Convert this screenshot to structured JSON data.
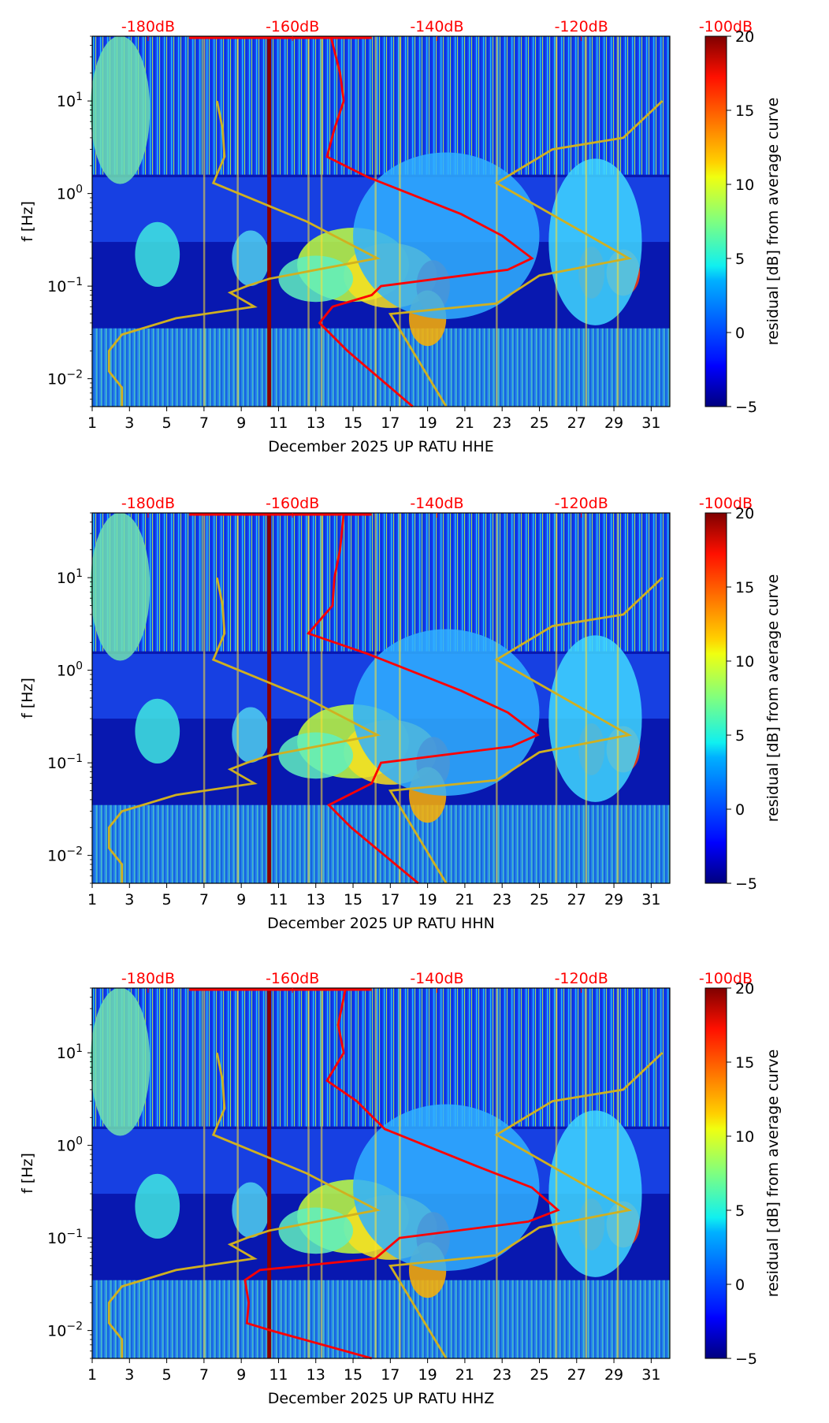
{
  "figure": {
    "xlabel_month": "December 2025 UP RATU",
    "ylabel": "f [Hz]",
    "colorbar_label": "residual [dB] from average curve",
    "ref_color": "#ff0000",
    "nlnm_color": "#d0b020"
  },
  "chart_data": [
    {
      "type": "heatmap",
      "channel": "HHE",
      "xlabel": "December 2025 UP RATU  HHE",
      "ylabel": "f [Hz]",
      "xlim": [
        1,
        32
      ],
      "ylim": [
        0.005,
        50
      ],
      "yscale": "log",
      "xticks": [
        "1",
        "3",
        "5",
        "7",
        "9",
        "11",
        "13",
        "15",
        "17",
        "19",
        "21",
        "23",
        "25",
        "27",
        "29",
        "31"
      ],
      "yticks": [
        "10^-2",
        "10^-1",
        "10^0",
        "10^1"
      ],
      "top_ticks": [
        "-180dB",
        "-160dB",
        "-140dB",
        "-120dB",
        "-100dB"
      ],
      "colorbar": {
        "range": [
          -5,
          20
        ],
        "ticks": [
          "-5",
          "0",
          "5",
          "10",
          "15",
          "20"
        ],
        "label": "residual [dB] from average curve",
        "colormap": "jet"
      },
      "ref_curve_day": [
        [
          50,
          13.8
        ],
        [
          20,
          14.3
        ],
        [
          10,
          14.5
        ],
        [
          5,
          14.0
        ],
        [
          2.5,
          13.6
        ],
        [
          1.5,
          15.8
        ],
        [
          0.6,
          20.8
        ],
        [
          0.35,
          23.0
        ],
        [
          0.2,
          24.6
        ],
        [
          0.15,
          23.3
        ],
        [
          0.1,
          16.5
        ],
        [
          0.08,
          16.0
        ],
        [
          0.06,
          13.9
        ],
        [
          0.04,
          13.2
        ],
        [
          0.02,
          14.7
        ],
        [
          0.005,
          18.2
        ]
      ],
      "nlnm_day": [
        [
          10,
          7.7
        ],
        [
          5,
          8.0
        ],
        [
          2.5,
          8.1
        ],
        [
          1.3,
          7.5
        ],
        [
          0.5,
          12.5
        ],
        [
          0.2,
          16.3
        ],
        [
          0.12,
          10.5
        ],
        [
          0.1,
          9.3
        ],
        [
          0.085,
          8.4
        ],
        [
          0.06,
          9.7
        ],
        [
          0.045,
          5.5
        ],
        [
          0.03,
          2.6
        ],
        [
          0.02,
          1.9
        ],
        [
          0.012,
          1.9
        ],
        [
          0.008,
          2.6
        ],
        [
          0.005,
          2.6
        ]
      ],
      "nhnm_day": [
        [
          10,
          31.6
        ],
        [
          4,
          29.5
        ],
        [
          3,
          25.7
        ],
        [
          1.3,
          22.7
        ],
        [
          0.2,
          29.8
        ],
        [
          0.13,
          25.0
        ],
        [
          0.065,
          22.7
        ],
        [
          0.05,
          17.0
        ],
        [
          0.005,
          20.0
        ]
      ],
      "vertical_line_day": 10.5
    },
    {
      "type": "heatmap",
      "channel": "HHN",
      "xlabel": "December 2025 UP RATU  HHN",
      "ylabel": "f [Hz]",
      "xlim": [
        1,
        32
      ],
      "ylim": [
        0.005,
        50
      ],
      "yscale": "log",
      "xticks": [
        "1",
        "3",
        "5",
        "7",
        "9",
        "11",
        "13",
        "15",
        "17",
        "19",
        "21",
        "23",
        "25",
        "27",
        "29",
        "31"
      ],
      "yticks": [
        "10^-2",
        "10^-1",
        "10^0",
        "10^1"
      ],
      "top_ticks": [
        "-180dB",
        "-160dB",
        "-140dB",
        "-120dB",
        "-100dB"
      ],
      "colorbar": {
        "range": [
          -5,
          20
        ],
        "ticks": [
          "-5",
          "0",
          "5",
          "10",
          "15",
          "20"
        ],
        "label": "residual [dB] from average curve",
        "colormap": "jet"
      },
      "ref_curve_day": [
        [
          50,
          14.5
        ],
        [
          20,
          14.3
        ],
        [
          10,
          14.0
        ],
        [
          5,
          13.9
        ],
        [
          2.5,
          12.6
        ],
        [
          1.5,
          15.8
        ],
        [
          0.6,
          20.8
        ],
        [
          0.35,
          23.3
        ],
        [
          0.2,
          24.9
        ],
        [
          0.15,
          23.5
        ],
        [
          0.1,
          16.5
        ],
        [
          0.06,
          16.0
        ],
        [
          0.035,
          13.7
        ],
        [
          0.02,
          14.9
        ],
        [
          0.005,
          18.5
        ]
      ],
      "nlnm_day": [
        [
          10,
          7.7
        ],
        [
          5,
          8.0
        ],
        [
          2.5,
          8.1
        ],
        [
          1.3,
          7.5
        ],
        [
          0.5,
          12.5
        ],
        [
          0.2,
          16.3
        ],
        [
          0.12,
          10.5
        ],
        [
          0.1,
          9.3
        ],
        [
          0.085,
          8.4
        ],
        [
          0.06,
          9.7
        ],
        [
          0.045,
          5.5
        ],
        [
          0.03,
          2.6
        ],
        [
          0.02,
          1.9
        ],
        [
          0.012,
          1.9
        ],
        [
          0.008,
          2.6
        ],
        [
          0.005,
          2.6
        ]
      ],
      "nhnm_day": [
        [
          10,
          31.6
        ],
        [
          4,
          29.5
        ],
        [
          3,
          25.7
        ],
        [
          1.3,
          22.7
        ],
        [
          0.2,
          29.8
        ],
        [
          0.13,
          25.0
        ],
        [
          0.065,
          22.7
        ],
        [
          0.05,
          17.0
        ],
        [
          0.005,
          20.0
        ]
      ],
      "vertical_line_day": 10.5
    },
    {
      "type": "heatmap",
      "channel": "HHZ",
      "xlabel": "December 2025 UP RATU  HHZ",
      "ylabel": "f [Hz]",
      "xlim": [
        1,
        32
      ],
      "ylim": [
        0.005,
        50
      ],
      "yscale": "log",
      "xticks": [
        "1",
        "3",
        "5",
        "7",
        "9",
        "11",
        "13",
        "15",
        "17",
        "19",
        "21",
        "23",
        "25",
        "27",
        "29",
        "31"
      ],
      "yticks": [
        "10^-2",
        "10^-1",
        "10^0",
        "10^1"
      ],
      "top_ticks": [
        "-180dB",
        "-160dB",
        "-140dB",
        "-120dB",
        "-100dB"
      ],
      "colorbar": {
        "range": [
          -5,
          20
        ],
        "ticks": [
          "-5",
          "0",
          "5",
          "10",
          "15",
          "20"
        ],
        "label": "residual [dB] from average curve",
        "colormap": "jet"
      },
      "ref_curve_day": [
        [
          50,
          14.6
        ],
        [
          20,
          14.2
        ],
        [
          10,
          14.5
        ],
        [
          5,
          13.6
        ],
        [
          3,
          15.2
        ],
        [
          1.5,
          16.7
        ],
        [
          0.6,
          21.6
        ],
        [
          0.35,
          24.6
        ],
        [
          0.2,
          26.0
        ],
        [
          0.15,
          24.4
        ],
        [
          0.1,
          17.5
        ],
        [
          0.06,
          16.2
        ],
        [
          0.045,
          10.0
        ],
        [
          0.035,
          9.2
        ],
        [
          0.02,
          9.4
        ],
        [
          0.012,
          9.3
        ],
        [
          0.01,
          10.6
        ],
        [
          0.005,
          16.0
        ]
      ],
      "nlnm_day": [
        [
          10,
          7.7
        ],
        [
          5,
          8.0
        ],
        [
          2.5,
          8.1
        ],
        [
          1.3,
          7.5
        ],
        [
          0.5,
          12.5
        ],
        [
          0.2,
          16.3
        ],
        [
          0.12,
          10.5
        ],
        [
          0.1,
          9.3
        ],
        [
          0.085,
          8.4
        ],
        [
          0.06,
          9.7
        ],
        [
          0.045,
          5.5
        ],
        [
          0.03,
          2.6
        ],
        [
          0.02,
          1.9
        ],
        [
          0.012,
          1.9
        ],
        [
          0.008,
          2.6
        ],
        [
          0.005,
          2.6
        ]
      ],
      "nhnm_day": [
        [
          10,
          31.6
        ],
        [
          4,
          29.5
        ],
        [
          3,
          25.7
        ],
        [
          1.3,
          22.7
        ],
        [
          0.2,
          29.8
        ],
        [
          0.13,
          25.0
        ],
        [
          0.065,
          22.7
        ],
        [
          0.05,
          17.0
        ],
        [
          0.005,
          20.0
        ]
      ],
      "vertical_line_day": 10.5
    }
  ]
}
